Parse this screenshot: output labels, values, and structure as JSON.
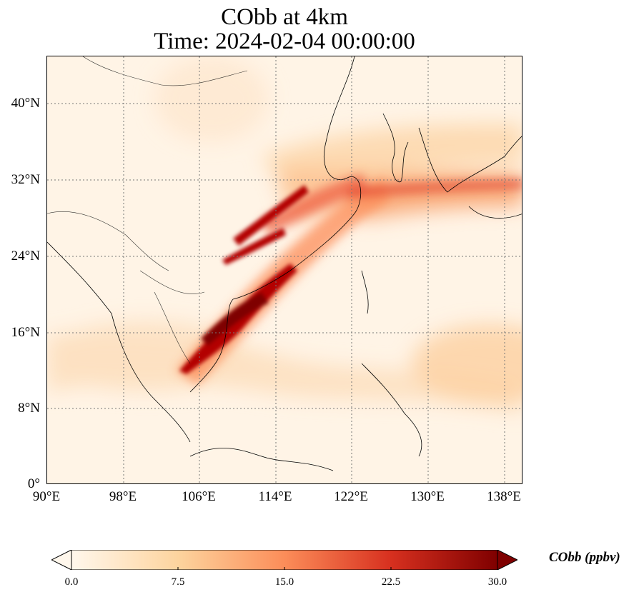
{
  "title": {
    "line1": "CObb at 4km",
    "line2": "Time: 2024-02-04 00:00:00"
  },
  "map": {
    "lat_labels": [
      "40°N",
      "32°N",
      "24°N",
      "16°N",
      "8°N",
      "0°"
    ],
    "lat_values": [
      40,
      32,
      24,
      16,
      8,
      0
    ],
    "lon_labels": [
      "90°E",
      "98°E",
      "106°E",
      "114°E",
      "122°E",
      "130°E",
      "138°E"
    ],
    "lon_values": [
      90,
      98,
      106,
      114,
      122,
      130,
      138
    ],
    "extent": {
      "lon": [
        90,
        140
      ],
      "lat": [
        0,
        45
      ]
    },
    "gridlines": "dotted",
    "colormap": "OrRd"
  },
  "colorbar": {
    "label": "CObb (ppbv)",
    "ticks": [
      "0.0",
      "7.5",
      "15.0",
      "22.5",
      "30.0"
    ],
    "range": [
      0,
      30
    ],
    "extend": "both",
    "colors": [
      "#fff7ec",
      "#fdd49e",
      "#fc8d59",
      "#d7301f",
      "#7f0000"
    ]
  },
  "plumes": [
    {
      "name": "indochina-south-china-plume",
      "peak": "30+"
    },
    {
      "name": "central-china-plume",
      "peak": "30+"
    },
    {
      "name": "east-asia-outflow-band",
      "peak": "15"
    }
  ]
}
